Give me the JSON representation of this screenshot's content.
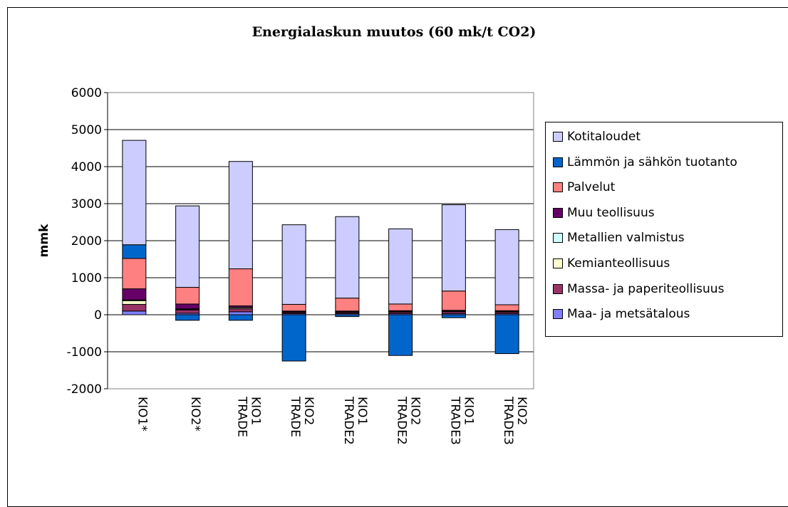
{
  "chart_data": {
    "type": "bar",
    "stacked": true,
    "title": "Energialaskun muutos (60 mk/t CO2)",
    "ylabel": "mmk",
    "xlabel": "",
    "ylim": [
      -2000,
      6000
    ],
    "yticks": [
      -2000,
      -1000,
      0,
      1000,
      2000,
      3000,
      4000,
      5000,
      6000
    ],
    "grid": true,
    "legend_position": "right",
    "categories": [
      [
        "KIO1*"
      ],
      [
        "KIO2*"
      ],
      [
        "KIO1",
        "TRADE"
      ],
      [
        "KIO2",
        "TRADE"
      ],
      [
        "KIO1",
        "TRADE2"
      ],
      [
        "KIO2",
        "TRADE2"
      ],
      [
        "KIO1",
        "TRADE3"
      ],
      [
        "KIO2",
        "TRADE3"
      ]
    ],
    "series": [
      {
        "name": "Maa- ja metsätalous",
        "color": "#8080ff",
        "values": [
          100,
          40,
          80,
          30,
          30,
          30,
          30,
          30
        ]
      },
      {
        "name": "Massa- ja paperiteollisuus",
        "color": "#993366",
        "values": [
          180,
          90,
          80,
          30,
          30,
          40,
          50,
          40
        ]
      },
      {
        "name": "Kemianteollisuus",
        "color": "#ffffcc",
        "values": [
          100,
          20,
          30,
          10,
          10,
          10,
          10,
          10
        ]
      },
      {
        "name": "Metallien valmistus",
        "color": "#ccffff",
        "values": [
          20,
          10,
          10,
          5,
          5,
          5,
          5,
          5
        ]
      },
      {
        "name": "Muu teollisuus",
        "color": "#660066",
        "values": [
          300,
          130,
          40,
          25,
          25,
          25,
          25,
          25
        ]
      },
      {
        "name": "Palvelut",
        "color": "#ff8080",
        "values": [
          820,
          450,
          1000,
          180,
          350,
          180,
          520,
          160
        ]
      },
      {
        "name": "Lämmön ja sähkön tuotanto",
        "color": "#0066cc",
        "values": [
          370,
          -150,
          -150,
          -1250,
          -50,
          -1100,
          -80,
          -1050
        ]
      },
      {
        "name": "Kotitaloudet",
        "color": "#ccccff",
        "values": [
          2820,
          2200,
          2900,
          2150,
          2200,
          2030,
          2330,
          2030
        ]
      }
    ]
  }
}
